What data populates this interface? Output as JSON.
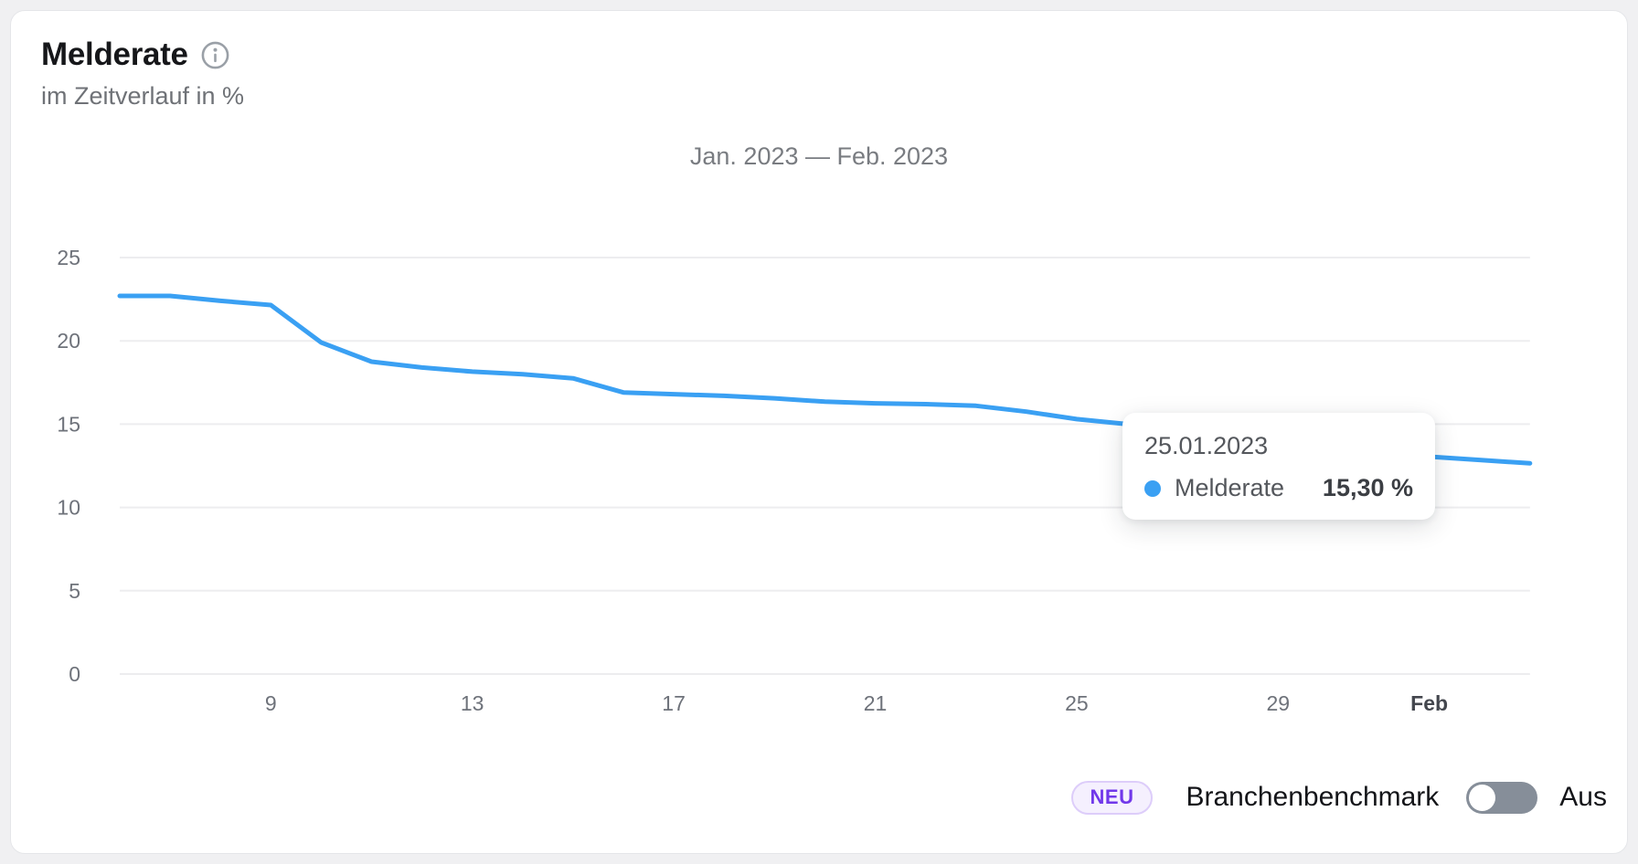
{
  "card": {
    "title": "Melderate",
    "subtitle": "im Zeitverlauf in %",
    "range_label": "Jan. 2023 — Feb. 2023"
  },
  "tooltip": {
    "date": "25.01.2023",
    "series": "Melderate",
    "value": "15,30 %"
  },
  "controls": {
    "badge": "NEU",
    "benchmark_label": "Branchenbenchmark",
    "toggle_state": "Aus"
  },
  "colors": {
    "line": "#3aa0f3",
    "grid": "#ededef",
    "axis_text": "#6e727a",
    "axis_text_bold": "#44474e",
    "badge_text": "#7138ea",
    "toggle_track": "#868e99"
  },
  "chart_data": {
    "type": "line",
    "title": "Jan. 2023 — Feb. 2023",
    "ylabel": "Melderate im Zeitverlauf in %",
    "ylim": [
      0,
      25
    ],
    "yticks": [
      0,
      5,
      10,
      15,
      20,
      25
    ],
    "grid": "horizontal",
    "legend_position": "none",
    "x": [
      "06.01.2023",
      "07.01.2023",
      "08.01.2023",
      "09.01.2023",
      "10.01.2023",
      "11.01.2023",
      "12.01.2023",
      "13.01.2023",
      "14.01.2023",
      "15.01.2023",
      "16.01.2023",
      "17.01.2023",
      "18.01.2023",
      "19.01.2023",
      "20.01.2023",
      "21.01.2023",
      "22.01.2023",
      "23.01.2023",
      "24.01.2023",
      "25.01.2023",
      "26.01.2023",
      "27.01.2023",
      "28.01.2023",
      "29.01.2023",
      "30.01.2023",
      "31.01.2023",
      "01.02.2023",
      "02.02.2023",
      "03.02.2023"
    ],
    "xticks": [
      {
        "index": 3,
        "label": "9",
        "bold": false
      },
      {
        "index": 7,
        "label": "13",
        "bold": false
      },
      {
        "index": 11,
        "label": "17",
        "bold": false
      },
      {
        "index": 15,
        "label": "21",
        "bold": false
      },
      {
        "index": 19,
        "label": "25",
        "bold": false
      },
      {
        "index": 23,
        "label": "29",
        "bold": false
      },
      {
        "index": 26,
        "label": "Feb",
        "bold": true
      }
    ],
    "series": [
      {
        "name": "Melderate",
        "color": "#3aa0f3",
        "values": [
          22.7,
          22.7,
          22.4,
          22.15,
          19.9,
          18.75,
          18.4,
          18.15,
          18.0,
          17.75,
          16.9,
          16.8,
          16.7,
          16.55,
          16.35,
          16.25,
          16.2,
          16.1,
          15.75,
          15.3,
          15.0,
          14.6,
          14.2,
          13.85,
          13.55,
          13.3,
          13.05,
          12.85,
          12.65
        ]
      }
    ],
    "highlighted_point": {
      "x": "25.01.2023",
      "series": "Melderate",
      "value": 15.3,
      "value_label": "15,30 %"
    }
  }
}
